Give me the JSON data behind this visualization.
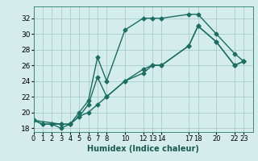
{
  "xlabel": "Humidex (Indice chaleur)",
  "bg_color": "#d4ecec",
  "grid_color": "#aacccc",
  "line_color": "#1a6e62",
  "line1_x": [
    0,
    1,
    2,
    3,
    4,
    5,
    6,
    7,
    8,
    10,
    12,
    13,
    14,
    17,
    18,
    20,
    22,
    23
  ],
  "line1_y": [
    19,
    18.5,
    18.5,
    18.5,
    18.5,
    20,
    21.5,
    27,
    24,
    30.5,
    32,
    32,
    32,
    32.5,
    32.5,
    30,
    27.5,
    26.5
  ],
  "line2_x": [
    0,
    1,
    2,
    3,
    4,
    5,
    6,
    7,
    8,
    10,
    12,
    13,
    14,
    17,
    18,
    20,
    22,
    23
  ],
  "line2_y": [
    19,
    18.5,
    18.5,
    18,
    18.5,
    19.5,
    20,
    21,
    22,
    24,
    25,
    26,
    26,
    28.5,
    31,
    29,
    26,
    26.5
  ],
  "line3_x": [
    0,
    3,
    4,
    5,
    6,
    7,
    8,
    10,
    12,
    13,
    14,
    17,
    18,
    20,
    22,
    23
  ],
  "line3_y": [
    19,
    18.5,
    18.5,
    19.5,
    21,
    24.5,
    22,
    24,
    25.5,
    26,
    26,
    28.5,
    31,
    29,
    26,
    26.5
  ],
  "xlim": [
    0,
    24
  ],
  "ylim": [
    17.5,
    33.5
  ],
  "yticks": [
    18,
    20,
    22,
    24,
    26,
    28,
    30,
    32
  ],
  "xtick_positions": [
    0,
    1,
    2,
    3,
    4,
    5,
    6,
    7,
    8,
    10,
    12,
    13,
    14,
    17,
    18,
    20,
    22,
    23
  ],
  "xtick_labels": [
    "0",
    "1",
    "2",
    "3",
    "4",
    "5",
    "6",
    "7",
    "8",
    "10",
    "12",
    "13",
    "14",
    "17",
    "18",
    "20",
    "22",
    "23"
  ],
  "marker": "D",
  "markersize": 2.5,
  "linewidth": 1.0
}
